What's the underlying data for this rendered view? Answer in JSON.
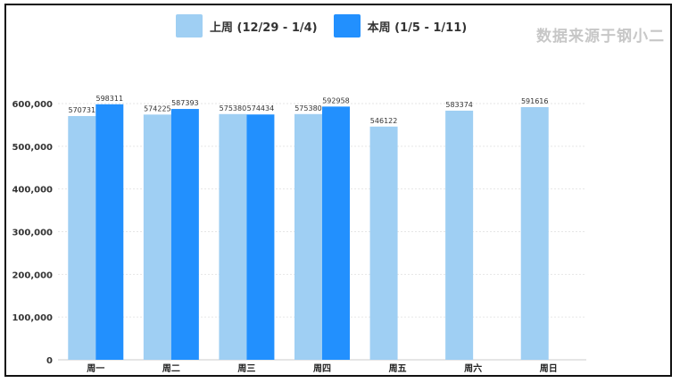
{
  "source_text": "数据来源于钢小二",
  "colors": {
    "last_week": "#9fcff3",
    "this_week": "#2290fe"
  },
  "chart_data": {
    "type": "bar",
    "categories": [
      "周一",
      "周二",
      "周三",
      "周四",
      "周五",
      "周六",
      "周日"
    ],
    "series": [
      {
        "name": "上周 (12/29 - 1/4)",
        "values": [
          570731,
          574225,
          575380,
          575380,
          546122,
          583374,
          591616
        ]
      },
      {
        "name": "本周 (1/5 - 1/11)",
        "values": [
          598311,
          587393,
          574434,
          592958,
          null,
          null,
          null
        ]
      }
    ],
    "yticks": [
      "0",
      "100,000",
      "200,000",
      "300,000",
      "400,000",
      "500,000",
      "600,000"
    ],
    "ylim": [
      0,
      600000
    ],
    "grid": true,
    "legend_position": "top"
  }
}
